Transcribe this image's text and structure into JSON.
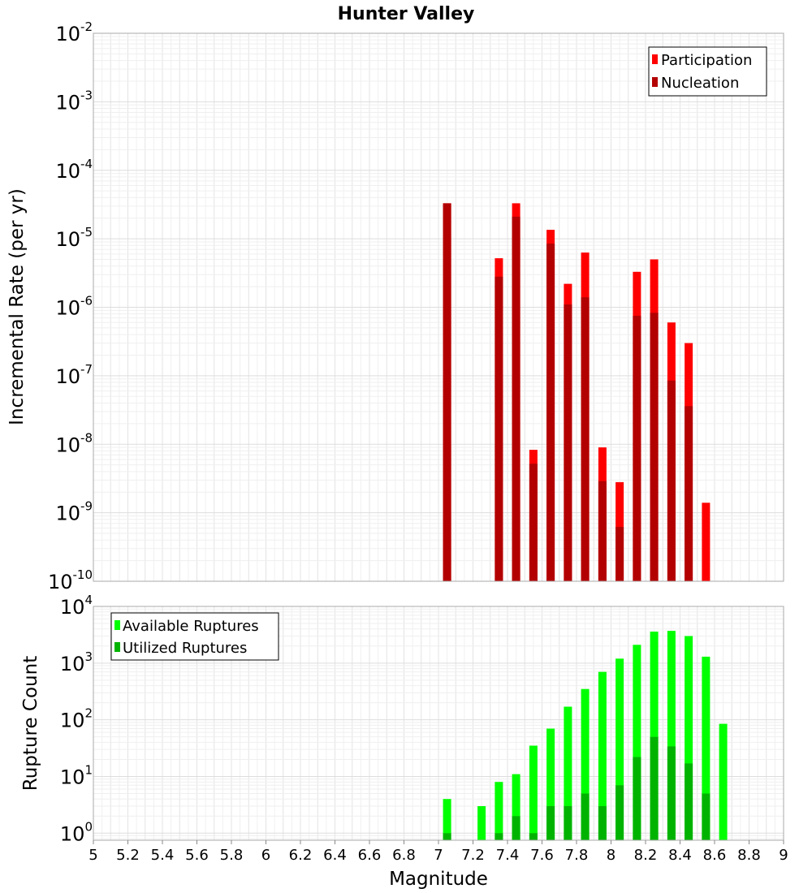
{
  "chart_data": [
    {
      "type": "bar",
      "title": "Hunter Valley",
      "xlabel": "",
      "ylabel": "Incremental Rate (per yr)",
      "yscale": "log",
      "ylim": [
        1e-10,
        0.01
      ],
      "xlim": [
        5,
        9
      ],
      "grid": true,
      "legend_position": "top-right",
      "y_tick_labels": [
        {
          "base": "10",
          "exp": "-10"
        },
        {
          "base": "10",
          "exp": "-9"
        },
        {
          "base": "10",
          "exp": "-8"
        },
        {
          "base": "10",
          "exp": "-7"
        },
        {
          "base": "10",
          "exp": "-6"
        },
        {
          "base": "10",
          "exp": "-5"
        },
        {
          "base": "10",
          "exp": "-4"
        },
        {
          "base": "10",
          "exp": "-3"
        },
        {
          "base": "10",
          "exp": "-2"
        }
      ],
      "series": [
        {
          "name": "Participation",
          "color": "#ff0000",
          "x": [
            7.05,
            7.35,
            7.45,
            7.55,
            7.65,
            7.75,
            7.85,
            7.95,
            8.05,
            8.15,
            8.25,
            8.35,
            8.45,
            8.55
          ],
          "values": [
            3.3e-05,
            5.2e-06,
            3.3e-05,
            8.3e-09,
            1.35e-05,
            2.2e-06,
            6.3e-06,
            9e-09,
            2.8e-09,
            3.3e-06,
            5e-06,
            6e-07,
            3e-07,
            1.4e-09
          ]
        },
        {
          "name": "Nucleation",
          "color": "#b30000",
          "x": [
            7.05,
            7.35,
            7.45,
            7.55,
            7.65,
            7.75,
            7.85,
            7.95,
            8.05,
            8.15,
            8.25,
            8.35,
            8.45
          ],
          "values": [
            3.3e-05,
            2.8e-06,
            2.1e-05,
            5.2e-09,
            8.5e-06,
            1.1e-06,
            1.4e-06,
            2.9e-09,
            6.2e-10,
            7.5e-07,
            8.3e-07,
            8.5e-08,
            3.6e-08
          ]
        }
      ]
    },
    {
      "type": "bar",
      "title": "",
      "xlabel": "Magnitude",
      "ylabel": "Rupture Count",
      "yscale": "log",
      "ylim": [
        0.75,
        10000
      ],
      "xlim": [
        5,
        9
      ],
      "grid": true,
      "legend_position": "top-left",
      "x_tick_labels": [
        "5",
        "5.2",
        "5.4",
        "5.6",
        "5.8",
        "6",
        "6.2",
        "6.4",
        "6.6",
        "6.8",
        "7",
        "7.2",
        "7.4",
        "7.6",
        "7.8",
        "8",
        "8.2",
        "8.4",
        "8.6",
        "8.8",
        "9"
      ],
      "y_tick_labels": [
        {
          "base": "10",
          "exp": "0"
        },
        {
          "base": "10",
          "exp": "1"
        },
        {
          "base": "10",
          "exp": "2"
        },
        {
          "base": "10",
          "exp": "3"
        },
        {
          "base": "10",
          "exp": "4"
        }
      ],
      "series": [
        {
          "name": "Available Ruptures",
          "color": "#00ff00",
          "x": [
            7.05,
            7.25,
            7.35,
            7.45,
            7.55,
            7.65,
            7.75,
            7.85,
            7.95,
            8.05,
            8.15,
            8.25,
            8.35,
            8.45,
            8.55,
            8.65
          ],
          "values": [
            4,
            3,
            8,
            11,
            35,
            70,
            170,
            350,
            700,
            1200,
            2100,
            3600,
            3700,
            3000,
            1300,
            85
          ]
        },
        {
          "name": "Utilized Ruptures",
          "color": "#00b300",
          "x": [
            7.05,
            7.35,
            7.45,
            7.55,
            7.65,
            7.75,
            7.85,
            7.95,
            8.05,
            8.15,
            8.25,
            8.35,
            8.45,
            8.55
          ],
          "values": [
            1,
            1,
            2,
            1,
            3,
            3,
            5,
            3,
            7,
            22,
            50,
            34,
            17,
            5
          ]
        }
      ]
    }
  ]
}
